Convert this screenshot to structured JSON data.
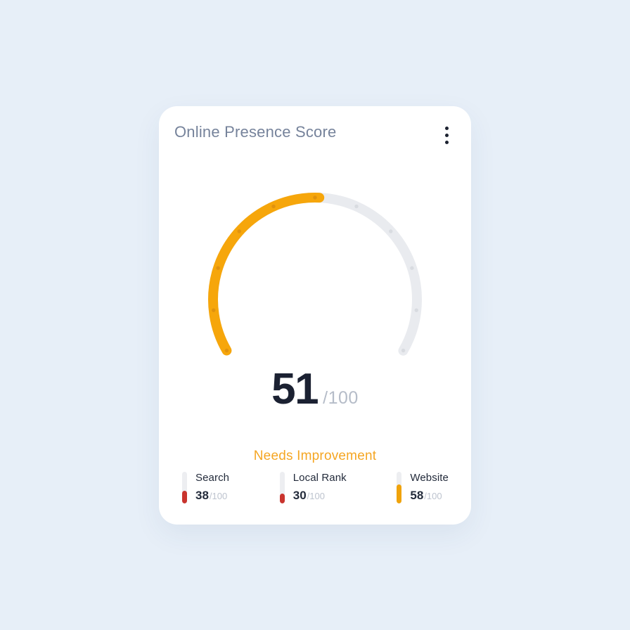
{
  "page": {
    "background": "#E7EFF8"
  },
  "card": {
    "title": "Online Presence Score",
    "menu_icon": "kebab-vertical"
  },
  "chart_data": {
    "type": "gauge",
    "title": "Online Presence Score",
    "score": 51,
    "max": 100,
    "score_suffix": "/100",
    "status_label": "Needs Improvement",
    "start_angle_deg": -120,
    "sweep_deg": 240,
    "tick_interval": 10,
    "colors": {
      "value_arc": "#F6A60B",
      "track": "#E9EBEF",
      "tick_on_value": "#E0920E",
      "tick_on_track": "#D8DBE0",
      "score_text": "#1B2132",
      "score_suffix_text": "#B5BCC8",
      "status_text": "#F5A623",
      "bar_track": "#EDEEF1"
    },
    "sub_metrics": [
      {
        "label": "Search",
        "value": 38,
        "max": 100,
        "suffix": "/100",
        "bar_color": "#C9342E"
      },
      {
        "label": "Local Rank",
        "value": 30,
        "max": 100,
        "suffix": "/100",
        "bar_color": "#C9342E"
      },
      {
        "label": "Website",
        "value": 58,
        "max": 100,
        "suffix": "/100",
        "bar_color": "#F0A30B"
      }
    ]
  }
}
